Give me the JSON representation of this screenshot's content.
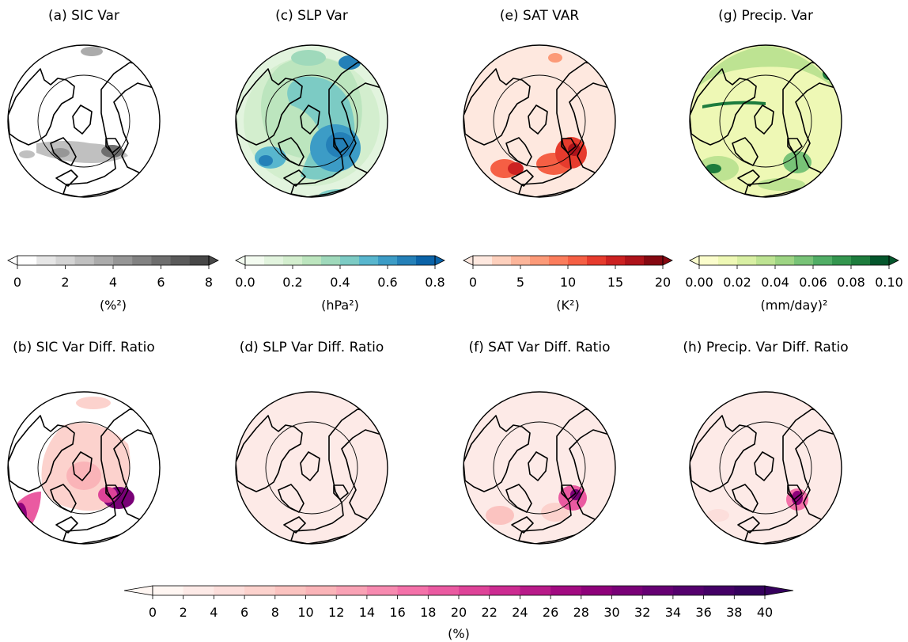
{
  "panels": [
    {
      "id": "a",
      "title": "(a) SIC Var",
      "field": "sic"
    },
    {
      "id": "c",
      "title": "(c) SLP Var",
      "field": "slp"
    },
    {
      "id": "e",
      "title": "(e) SAT VAR",
      "field": "sat"
    },
    {
      "id": "g",
      "title": "(g) Precip. Var",
      "field": "precip"
    },
    {
      "id": "b",
      "title": "(b) SIC Var Diff. Ratio",
      "field": "sic_ratio"
    },
    {
      "id": "d",
      "title": "(d) SLP Var Diff. Ratio",
      "field": "slp_ratio"
    },
    {
      "id": "f",
      "title": "(f) SAT Var Diff. Ratio",
      "field": "sat_ratio"
    },
    {
      "id": "h",
      "title": "(h) Precip. Var Diff. Ratio",
      "field": "precip_ratio"
    }
  ],
  "colorbars": [
    {
      "id": "sic",
      "ticks": [
        "0",
        "2",
        "4",
        "6",
        "8"
      ],
      "unit": "(%²)",
      "colormap": "Greys",
      "levels": 10,
      "colors": [
        "#ffffff",
        "#e6e6e6",
        "#d4d4d4",
        "#c0c0c0",
        "#ababab",
        "#969696",
        "#828282",
        "#6e6e6e",
        "#5a5a5a",
        "#474747"
      ]
    },
    {
      "id": "slp",
      "ticks": [
        "0.0",
        "0.2",
        "0.4",
        "0.6",
        "0.8"
      ],
      "unit": "(hPa²)",
      "colormap": "GnBu",
      "levels": 10,
      "colors": [
        "#f3fbf0",
        "#e2f4de",
        "#d3eece",
        "#bce5be",
        "#9fd9bb",
        "#7ccbc4",
        "#58b6ce",
        "#3c9cc6",
        "#2480b8",
        "#0b63a8"
      ]
    },
    {
      "id": "sat",
      "ticks": [
        "0",
        "5",
        "10",
        "15",
        "20"
      ],
      "unit": "(K²)",
      "colormap": "Reds",
      "levels": 10,
      "colors": [
        "#fee8df",
        "#fdd0bd",
        "#fcb59a",
        "#fc9a78",
        "#fb7d5c",
        "#f55f44",
        "#e63b2d",
        "#cc2121",
        "#ae131a",
        "#850811"
      ]
    },
    {
      "id": "precip",
      "ticks": [
        "0.00",
        "0.02",
        "0.04",
        "0.06",
        "0.08",
        "0.10"
      ],
      "unit": "(mm/day)²",
      "colormap": "YlGn",
      "levels": 10,
      "colors": [
        "#fbfdcc",
        "#eef8b5",
        "#d8efa3",
        "#bde392",
        "#9dd483",
        "#78c377",
        "#51ae66",
        "#34964f",
        "#1d7c3d",
        "#04562c"
      ]
    },
    {
      "id": "ratio",
      "ticks": [
        "0",
        "2",
        "4",
        "6",
        "8",
        "10",
        "12",
        "14",
        "16",
        "18",
        "20",
        "22",
        "24",
        "26",
        "28",
        "30",
        "32",
        "34",
        "36",
        "38",
        "40"
      ],
      "unit": "(%)",
      "colormap": "RdPu",
      "levels": 20,
      "colors": [
        "#fff6f2",
        "#fdeae7",
        "#fcdedb",
        "#fcd2cd",
        "#fbc3c0",
        "#fab4b8",
        "#f9a2b5",
        "#f78ab0",
        "#f471a9",
        "#ea5aa1",
        "#de4398",
        "#cc2b91",
        "#b81a89",
        "#a20a81",
        "#8e017a",
        "#790177",
        "#660073",
        "#54006d",
        "#440066",
        "#35005d"
      ]
    }
  ]
}
